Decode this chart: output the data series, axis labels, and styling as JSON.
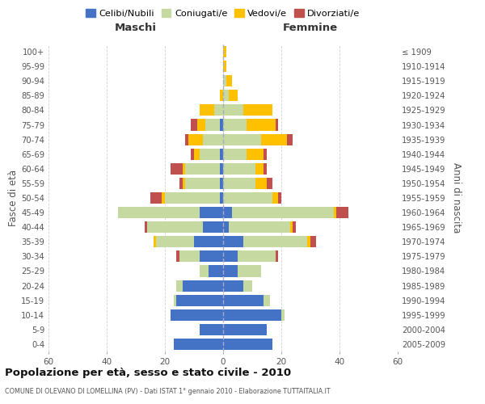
{
  "age_groups": [
    "0-4",
    "5-9",
    "10-14",
    "15-19",
    "20-24",
    "25-29",
    "30-34",
    "35-39",
    "40-44",
    "45-49",
    "50-54",
    "55-59",
    "60-64",
    "65-69",
    "70-74",
    "75-79",
    "80-84",
    "85-89",
    "90-94",
    "95-99",
    "100+"
  ],
  "birth_years": [
    "2005-2009",
    "2000-2004",
    "1995-1999",
    "1990-1994",
    "1985-1989",
    "1980-1984",
    "1975-1979",
    "1970-1974",
    "1965-1969",
    "1960-1964",
    "1955-1959",
    "1950-1954",
    "1945-1949",
    "1940-1944",
    "1935-1939",
    "1930-1934",
    "1925-1929",
    "1920-1924",
    "1915-1919",
    "1910-1914",
    "≤ 1909"
  ],
  "maschi": {
    "celibi": [
      17,
      8,
      18,
      16,
      14,
      5,
      8,
      10,
      7,
      8,
      1,
      1,
      1,
      1,
      0,
      1,
      0,
      0,
      0,
      0,
      0
    ],
    "coniugati": [
      0,
      0,
      0,
      1,
      2,
      3,
      7,
      13,
      19,
      28,
      19,
      12,
      12,
      7,
      7,
      5,
      3,
      0,
      0,
      0,
      0
    ],
    "vedovi": [
      0,
      0,
      0,
      0,
      0,
      0,
      0,
      1,
      0,
      0,
      1,
      1,
      1,
      2,
      5,
      3,
      5,
      1,
      0,
      0,
      0
    ],
    "divorziati": [
      0,
      0,
      0,
      0,
      0,
      0,
      1,
      0,
      1,
      0,
      4,
      1,
      4,
      1,
      1,
      2,
      0,
      0,
      0,
      0,
      0
    ]
  },
  "femmine": {
    "nubili": [
      17,
      15,
      20,
      14,
      7,
      5,
      5,
      7,
      2,
      3,
      0,
      0,
      0,
      0,
      0,
      0,
      0,
      0,
      0,
      0,
      0
    ],
    "coniugate": [
      0,
      0,
      1,
      2,
      3,
      8,
      13,
      22,
      21,
      35,
      17,
      11,
      11,
      8,
      13,
      8,
      7,
      2,
      1,
      0,
      0
    ],
    "vedove": [
      0,
      0,
      0,
      0,
      0,
      0,
      0,
      1,
      1,
      1,
      2,
      4,
      3,
      6,
      9,
      10,
      10,
      3,
      2,
      1,
      1
    ],
    "divorziate": [
      0,
      0,
      0,
      0,
      0,
      0,
      1,
      2,
      1,
      4,
      1,
      2,
      1,
      1,
      2,
      1,
      0,
      0,
      0,
      0,
      0
    ]
  },
  "colors": {
    "celibi": "#4472c4",
    "coniugati": "#c5d9a0",
    "vedovi": "#ffc000",
    "divorziati": "#c0504d"
  },
  "xlim": 60,
  "title": "Popolazione per età, sesso e stato civile - 2010",
  "subtitle": "COMUNE DI OLEVANO DI LOMELLINA (PV) - Dati ISTAT 1° gennaio 2010 - Elaborazione TUTTAITALIA.IT",
  "ylabel_left": "Fasce di età",
  "ylabel_right": "Anni di nascita",
  "xlabel_left": "Maschi",
  "xlabel_right": "Femmine",
  "bg_color": "#ffffff",
  "grid_color": "#cccccc",
  "legend_labels": [
    "Celibi/Nubili",
    "Coniugati/e",
    "Vedovi/e",
    "Divorziati/e"
  ]
}
